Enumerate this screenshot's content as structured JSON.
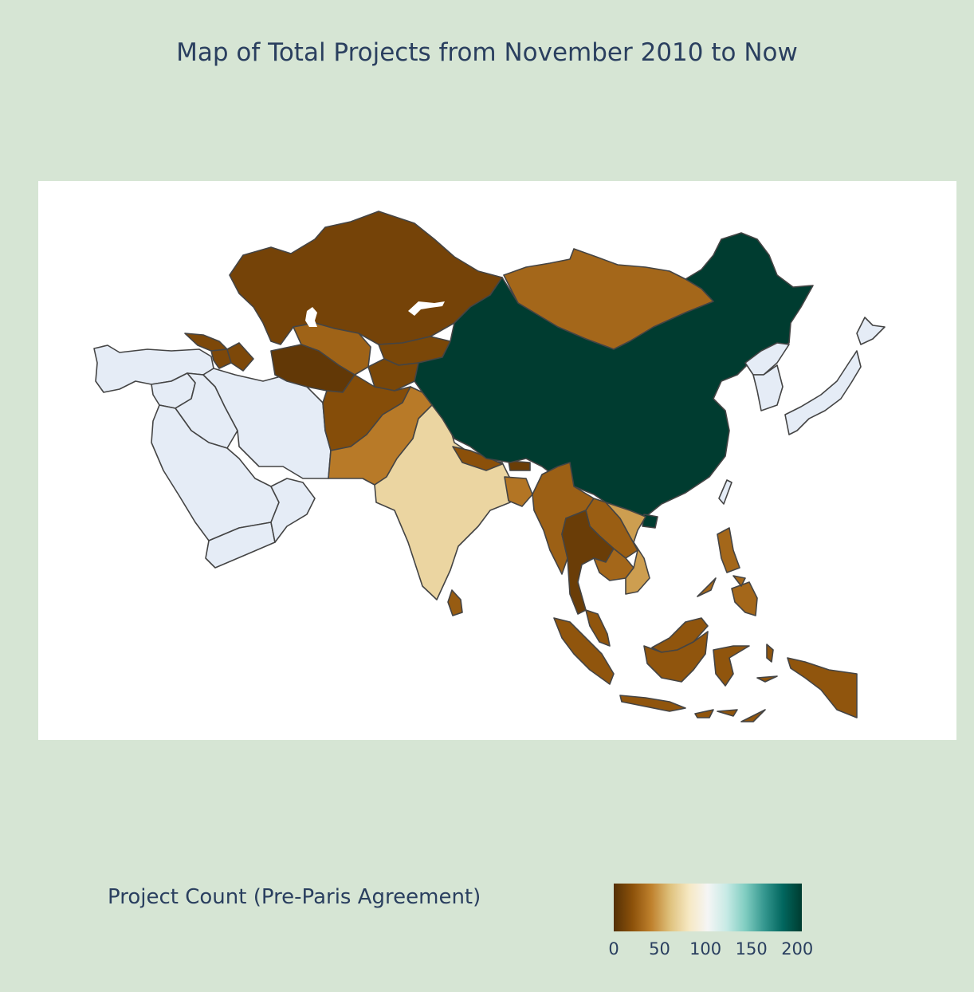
{
  "chart_title": "Map of Total Projects from November 2010 to Now",
  "colorbar": {
    "title": "Project Count (Pre-Paris Agreement)",
    "min": 0,
    "max": 205,
    "ticks": [
      "0",
      "50",
      "100",
      "150",
      "200"
    ],
    "tick_values": [
      0,
      50,
      100,
      150,
      200
    ],
    "colorscale": [
      "#543005",
      "#8c510a",
      "#bf812d",
      "#dfc27d",
      "#f6e8c3",
      "#f5f5f5",
      "#c7eae5",
      "#80cdc1",
      "#35978f",
      "#01665e",
      "#003c30"
    ]
  },
  "chart_data": {
    "type": "choropleth",
    "scope": "asia",
    "no_data_color": "#e5ecf6",
    "regions": [
      {
        "name": "China",
        "value": 205
      },
      {
        "name": "Mongolia",
        "value": 30
      },
      {
        "name": "Kazakhstan",
        "value": 12
      },
      {
        "name": "Uzbekistan",
        "value": 28
      },
      {
        "name": "Turkmenistan",
        "value": 5
      },
      {
        "name": "Kyrgyzstan",
        "value": 14
      },
      {
        "name": "Tajikistan",
        "value": 14
      },
      {
        "name": "Afghanistan",
        "value": 18
      },
      {
        "name": "Pakistan",
        "value": 38
      },
      {
        "name": "India",
        "value": 72
      },
      {
        "name": "Nepal",
        "value": 20
      },
      {
        "name": "Bhutan",
        "value": 8
      },
      {
        "name": "Bangladesh",
        "value": 36
      },
      {
        "name": "Sri Lanka",
        "value": 25
      },
      {
        "name": "Myanmar",
        "value": 27
      },
      {
        "name": "Thailand",
        "value": 8
      },
      {
        "name": "Laos",
        "value": 26
      },
      {
        "name": "Cambodia",
        "value": 30
      },
      {
        "name": "Vietnam",
        "value": 50
      },
      {
        "name": "Malaysia",
        "value": 22
      },
      {
        "name": "Indonesia",
        "value": 22
      },
      {
        "name": "Philippines",
        "value": 30
      },
      {
        "name": "Georgia",
        "value": 15
      },
      {
        "name": "Armenia",
        "value": 15
      },
      {
        "name": "Azerbaijan",
        "value": 15
      },
      {
        "name": "Iran",
        "value": null
      },
      {
        "name": "Iraq",
        "value": null
      },
      {
        "name": "Turkey",
        "value": null
      },
      {
        "name": "Syria",
        "value": null
      },
      {
        "name": "Saudi Arabia",
        "value": null
      },
      {
        "name": "Yemen",
        "value": null
      },
      {
        "name": "Oman",
        "value": null
      },
      {
        "name": "Japan",
        "value": null
      },
      {
        "name": "South Korea",
        "value": null
      },
      {
        "name": "North Korea",
        "value": null
      },
      {
        "name": "Taiwan",
        "value": null
      }
    ]
  }
}
